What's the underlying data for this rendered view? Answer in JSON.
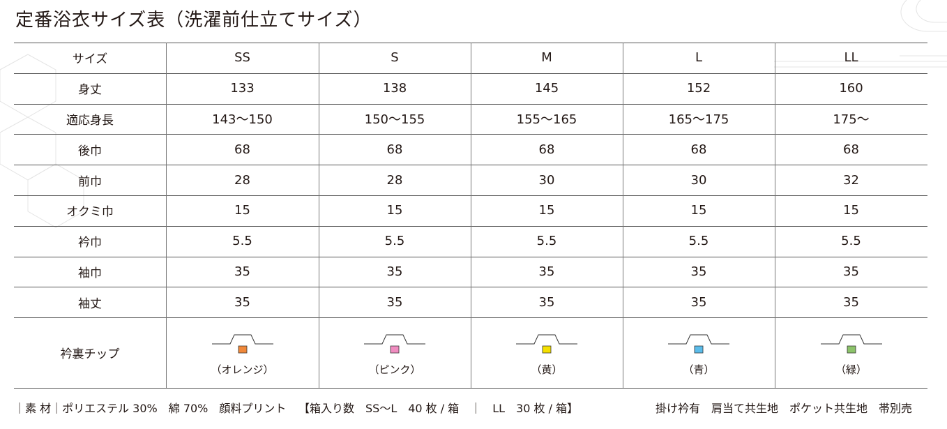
{
  "title": "定番浴衣サイズ表（洗濯前仕立てサイズ）",
  "table": {
    "header": [
      "サイズ",
      "SS",
      "S",
      "M",
      "L",
      "LL"
    ],
    "rows": [
      [
        "身丈",
        133,
        138,
        145,
        152,
        160
      ],
      [
        "適応身長",
        "143〜150",
        "150〜155",
        "155〜165",
        "165〜175",
        "175〜"
      ],
      [
        "後巾",
        68,
        68,
        68,
        68,
        68
      ],
      [
        "前巾",
        28,
        28,
        30,
        30,
        32
      ],
      [
        "オクミ巾",
        15,
        15,
        15,
        15,
        15
      ],
      [
        "衿巾",
        5.5,
        5.5,
        5.5,
        5.5,
        5.5
      ],
      [
        "袖巾",
        35,
        35,
        35,
        35,
        35
      ],
      [
        "袖丈",
        35,
        35,
        35,
        35,
        35
      ]
    ],
    "chips": {
      "label": "衿裏チップ",
      "items": [
        {
          "color": "#f0883a",
          "label": "（オレンジ）"
        },
        {
          "color": "#f08cc0",
          "label": "（ピンク）"
        },
        {
          "color": "#f5e000",
          "label": "（黄）"
        },
        {
          "color": "#5bbcea",
          "label": "（青）"
        },
        {
          "color": "#8cc36a",
          "label": "（緑）"
        }
      ]
    }
  },
  "footer": [
    "｜素 材｜ポリエステル 30%　綿 70%　顔料プリント",
    "【箱入り数　SS〜L　40 枚 / 箱　｜　LL　30 枚 / 箱】",
    "掛け衿有　肩当て共生地　ポケット共生地　帯別売"
  ]
}
